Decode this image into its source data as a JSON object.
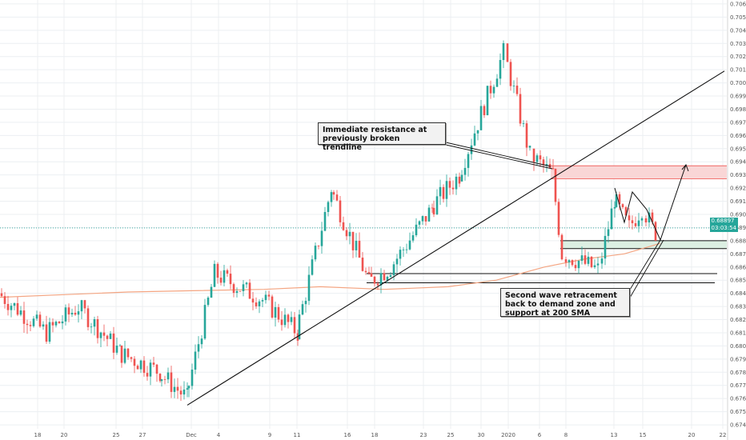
{
  "colors": {
    "bull": "#26a69a",
    "bear": "#ef5350",
    "sma": "#f4a582",
    "grid": "#eceff2",
    "resistance_fill": "#f9d6d6",
    "resistance_line": "#ef5350",
    "demand_fill": "#dcefe2",
    "line": "#111111",
    "price_line": "#26a69a"
  },
  "price_tag": {
    "price": "0.68897",
    "countdown": "03:03:54"
  },
  "annotations": {
    "resistance": "Immediate resistance at previously broken trendline",
    "retracement": "Second wave retracement back to demand zone and support at 200 SMA"
  },
  "watermark": "",
  "chart_data": {
    "type": "candlestick",
    "y_axis_labels": [
      "0.67400",
      "0.67500",
      "0.67600",
      "0.67700",
      "0.67800",
      "0.67900",
      "0.68000",
      "0.68100",
      "0.68200",
      "0.68300",
      "0.68400",
      "0.68500",
      "0.68600",
      "0.68700",
      "0.68800",
      "0.68900",
      "0.69000",
      "0.69100",
      "0.69200",
      "0.69300",
      "0.69400",
      "0.69500",
      "0.69600",
      "0.69700",
      "0.69800",
      "0.69900",
      "0.70000",
      "0.70100",
      "0.70200",
      "0.70300",
      "0.70400",
      "0.70500",
      "0.70600"
    ],
    "ylim": [
      0.6737,
      0.7063
    ],
    "x_axis_labels": [
      "18",
      "20",
      "25",
      "27",
      "Dec",
      "4",
      "9",
      "11",
      "16",
      "18",
      "23",
      "25",
      "30",
      "2020",
      "6",
      "8",
      "13",
      "15",
      "20",
      "22"
    ],
    "current_price": 0.68897,
    "sma_200_label": "200 SMA",
    "sma_path": [
      [
        0,
        0.6837
      ],
      [
        80,
        0.6839
      ],
      [
        160,
        0.6841
      ],
      [
        240,
        0.6842
      ],
      [
        330,
        0.6843
      ],
      [
        400,
        0.6845
      ],
      [
        480,
        0.6843
      ],
      [
        560,
        0.6845
      ],
      [
        620,
        0.685
      ],
      [
        680,
        0.686
      ],
      [
        730,
        0.6866
      ],
      [
        780,
        0.687
      ],
      [
        825,
        0.6878
      ]
    ],
    "resistance_zone": [
      0.6927,
      0.6937
    ],
    "demand_zone": [
      0.6874,
      0.688
    ],
    "support_lines": [
      0.6855,
      0.6848
    ],
    "trendline": [
      [
        234,
        0.6755
      ],
      [
        905,
        0.7009
      ]
    ],
    "segments": [
      {
        "x0": 0,
        "x1": 60,
        "start": 0.684,
        "end": 0.681,
        "low": 0.677,
        "high": 0.6845
      },
      {
        "x0": 60,
        "x1": 100,
        "start": 0.681,
        "end": 0.683,
        "low": 0.6795,
        "high": 0.6835
      },
      {
        "x0": 100,
        "x1": 150,
        "start": 0.683,
        "end": 0.6795,
        "low": 0.6785,
        "high": 0.6835
      },
      {
        "x0": 150,
        "x1": 200,
        "start": 0.6795,
        "end": 0.678,
        "low": 0.677,
        "high": 0.6805
      },
      {
        "x0": 200,
        "x1": 234,
        "start": 0.678,
        "end": 0.676,
        "low": 0.6757,
        "high": 0.6785
      },
      {
        "x0": 234,
        "x1": 270,
        "start": 0.676,
        "end": 0.6855,
        "low": 0.6755,
        "high": 0.6865
      },
      {
        "x0": 270,
        "x1": 330,
        "start": 0.6855,
        "end": 0.6835,
        "low": 0.682,
        "high": 0.6865
      },
      {
        "x0": 330,
        "x1": 372,
        "start": 0.6835,
        "end": 0.681,
        "low": 0.68,
        "high": 0.6842
      },
      {
        "x0": 372,
        "x1": 415,
        "start": 0.681,
        "end": 0.692,
        "low": 0.6805,
        "high": 0.6933
      },
      {
        "x0": 415,
        "x1": 462,
        "start": 0.692,
        "end": 0.6848,
        "low": 0.684,
        "high": 0.6925
      },
      {
        "x0": 462,
        "x1": 490,
        "start": 0.6848,
        "end": 0.686,
        "low": 0.684,
        "high": 0.6868
      },
      {
        "x0": 490,
        "x1": 540,
        "start": 0.686,
        "end": 0.6905,
        "low": 0.685,
        "high": 0.6912
      },
      {
        "x0": 540,
        "x1": 575,
        "start": 0.6905,
        "end": 0.693,
        "low": 0.6898,
        "high": 0.6935
      },
      {
        "x0": 575,
        "x1": 632,
        "start": 0.693,
        "end": 0.7023,
        "low": 0.6925,
        "high": 0.7033
      },
      {
        "x0": 632,
        "x1": 665,
        "start": 0.7023,
        "end": 0.6945,
        "low": 0.6935,
        "high": 0.703
      },
      {
        "x0": 665,
        "x1": 692,
        "start": 0.6945,
        "end": 0.693,
        "low": 0.6925,
        "high": 0.695
      },
      {
        "x0": 692,
        "x1": 705,
        "start": 0.693,
        "end": 0.687,
        "low": 0.6865,
        "high": 0.6935
      },
      {
        "x0": 705,
        "x1": 750,
        "start": 0.687,
        "end": 0.6858,
        "low": 0.685,
        "high": 0.688
      },
      {
        "x0": 750,
        "x1": 768,
        "start": 0.6858,
        "end": 0.6912,
        "low": 0.685,
        "high": 0.6918
      },
      {
        "x0": 768,
        "x1": 788,
        "start": 0.6912,
        "end": 0.689,
        "low": 0.6885,
        "high": 0.6918
      },
      {
        "x0": 788,
        "x1": 805,
        "start": 0.689,
        "end": 0.6905,
        "low": 0.6885,
        "high": 0.691
      },
      {
        "x0": 805,
        "x1": 820,
        "start": 0.6905,
        "end": 0.6885,
        "low": 0.688,
        "high": 0.6908
      }
    ]
  }
}
